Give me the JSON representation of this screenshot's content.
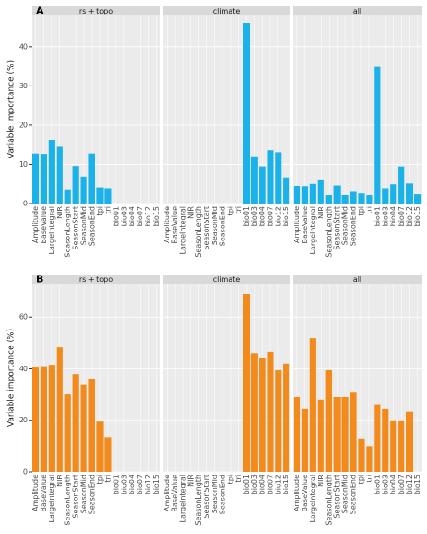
{
  "chart_data": [
    {
      "type": "bar",
      "panel_label": "A",
      "ylabel": "Variable importance (%)",
      "color": "#1ab2e8",
      "ylim": [
        0,
        48
      ],
      "yticks": [
        0,
        10,
        20,
        30,
        40
      ],
      "grid": true,
      "categories": [
        "Amplitude",
        "BaseValue",
        "LargeIntegral",
        "NIR",
        "SeasonLength",
        "SeasonStart",
        "SeasonMid",
        "SeasonEnd",
        "tpi",
        "tri",
        "bio01",
        "bio03",
        "bio04",
        "bio07",
        "bio12",
        "bio15"
      ],
      "facets": [
        {
          "name": "rs + topo",
          "values": [
            12.7,
            12.6,
            16.3,
            14.6,
            3.5,
            9.6,
            6.7,
            12.7,
            4.0,
            3.8,
            null,
            null,
            null,
            null,
            null,
            null
          ]
        },
        {
          "name": "climate",
          "values": [
            null,
            null,
            null,
            null,
            null,
            null,
            null,
            null,
            null,
            null,
            46,
            12,
            9.5,
            13.5,
            13,
            6.5
          ]
        },
        {
          "name": "all",
          "values": [
            4.5,
            4.3,
            5.1,
            6.0,
            2.3,
            4.7,
            2.3,
            3.1,
            2.7,
            2.3,
            35,
            3.8,
            5,
            9.5,
            5.2,
            2.5
          ]
        }
      ]
    },
    {
      "type": "bar",
      "panel_label": "B",
      "ylabel": "Variable importance (%)",
      "color": "#f28a1c",
      "ylim": [
        0,
        73
      ],
      "yticks": [
        0,
        20,
        40,
        60
      ],
      "grid": true,
      "categories": [
        "Amplitude",
        "BaseValue",
        "LargeIntegral",
        "NIR",
        "SeasonLength",
        "SeasonStart",
        "SeasonMid",
        "SeasonEnd",
        "tpi",
        "tri",
        "bio01",
        "bio03",
        "bio04",
        "bio07",
        "bio12",
        "bio15"
      ],
      "facets": [
        {
          "name": "rs + topo",
          "values": [
            40.5,
            41,
            41.5,
            48.5,
            30,
            38,
            34,
            36,
            19.5,
            13.5,
            null,
            null,
            null,
            null,
            null,
            null
          ]
        },
        {
          "name": "climate",
          "values": [
            null,
            null,
            null,
            null,
            null,
            null,
            null,
            null,
            null,
            null,
            69,
            46,
            44,
            46.5,
            39.5,
            42
          ]
        },
        {
          "name": "all",
          "values": [
            29,
            24.5,
            52,
            28,
            39.5,
            29,
            29,
            31,
            13,
            10,
            26,
            24.5,
            20,
            20,
            23.5,
            null
          ]
        }
      ]
    }
  ]
}
